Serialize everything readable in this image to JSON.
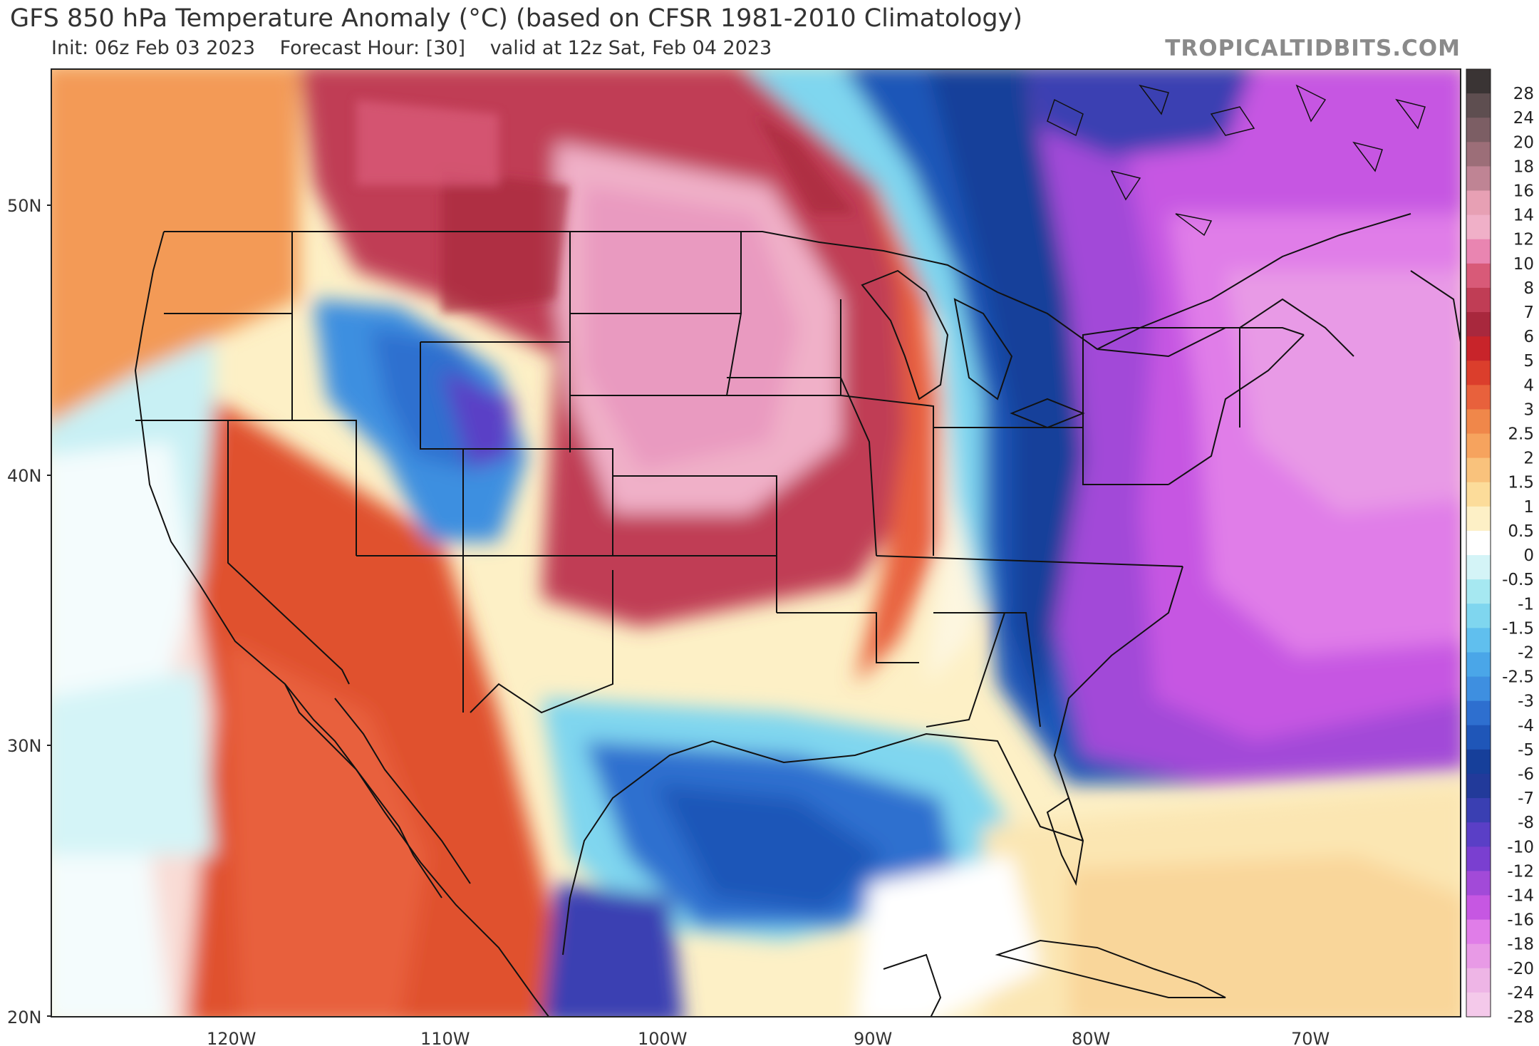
{
  "header": {
    "title": "GFS 850 hPa Temperature Anomaly (°C) (based on CFSR 1981-2010 Climatology)",
    "init": "Init: 06z Feb 03 2023",
    "forecast_hour": "Forecast Hour: [30]",
    "valid": "valid at 12z Sat, Feb 04 2023",
    "brand": "TROPICALTIDBITS.COM"
  },
  "lat_labels": [
    "50N",
    "40N",
    "30N",
    "20N"
  ],
  "lon_labels": [
    "120W",
    "110W",
    "100W",
    "90W",
    "80W",
    "70W"
  ],
  "colorbar": {
    "labels": [
      "28",
      "24",
      "20",
      "18",
      "16",
      "14",
      "12",
      "10",
      "8",
      "7",
      "6",
      "5",
      "4",
      "3",
      "2.5",
      "2",
      "1.5",
      "1",
      "0.5",
      "0",
      "-0.5",
      "-1",
      "-1.5",
      "-2",
      "-2.5",
      "-3",
      "-4",
      "-5",
      "-6",
      "-7",
      "-8",
      "-10",
      "-12",
      "-14",
      "-16",
      "-18",
      "-20",
      "-24",
      "-28"
    ],
    "colors": [
      "#3a3434",
      "#5e4e50",
      "#7c5e64",
      "#9c6e78",
      "#bf8494",
      "#e7a0b4",
      "#f0b0c8",
      "#e985b1",
      "#d85a78",
      "#c03d55",
      "#a8283d",
      "#c8242a",
      "#db3e2c",
      "#e8613c",
      "#f0874a",
      "#f6a35e",
      "#f9c27c",
      "#fcdc9a",
      "#fdf0c6",
      "#ffffff",
      "#d4f4f7",
      "#a6e8f1",
      "#7fd6ef",
      "#60bfee",
      "#4aa6e8",
      "#3e8fe0",
      "#2e6fcf",
      "#1f56b8",
      "#163f9a",
      "#223a9a",
      "#3a3fb2",
      "#5a3fc6",
      "#7a3fd0",
      "#a24ad8",
      "#c657e2",
      "#e07de8",
      "#e89ae6",
      "#eeb5e6",
      "#f4c9ea"
    ]
  },
  "colors": {
    "hot_core": "#e985b1",
    "warm": "#c8242a",
    "cold": "#3a3fb2",
    "extreme_cold": "#c657e2"
  }
}
